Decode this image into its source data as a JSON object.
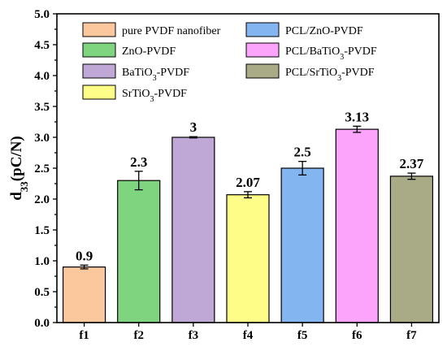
{
  "chart_data": {
    "type": "bar",
    "categories": [
      "f1",
      "f2",
      "f3",
      "f4",
      "f5",
      "f6",
      "f7"
    ],
    "values": [
      0.9,
      2.3,
      3.0,
      2.07,
      2.5,
      3.13,
      2.37
    ],
    "errors": [
      0.03,
      0.15,
      0.01,
      0.05,
      0.11,
      0.05,
      0.05
    ],
    "data_labels": [
      "0.9",
      "2.3",
      "3",
      "2.07",
      "2.5",
      "3.13",
      "2.37"
    ],
    "colors": [
      "#fbc79d",
      "#7fd47f",
      "#bfa8d6",
      "#fdfd88",
      "#83b5f0",
      "#fca4fc",
      "#a9ab86"
    ],
    "legend": [
      {
        "main": "pure PVDF nanofiber",
        "sub": "",
        "tail": "",
        "color": "#fbc79d"
      },
      {
        "main": "PCL/ZnO-PVDF",
        "sub": "",
        "tail": "",
        "color": "#83b5f0"
      },
      {
        "main": "ZnO-PVDF",
        "sub": "",
        "tail": "",
        "color": "#7fd47f"
      },
      {
        "main": "PCL/BaTiO",
        "sub": "3",
        "tail": "-PVDF",
        "color": "#fca4fc"
      },
      {
        "main": "BaTiO",
        "sub": "3",
        "tail": "-PVDF",
        "color": "#bfa8d6"
      },
      {
        "main": "PCL/SrTiO",
        "sub": "3",
        "tail": "-PVDF",
        "color": "#a9ab86"
      },
      {
        "main": "SrTiO",
        "sub": "3",
        "tail": "-PVDF",
        "color": "#fdfd88"
      }
    ],
    "legend_position": "top",
    "ylabel": {
      "main": "d",
      "sub": "33",
      "tail": "(pC/N)"
    },
    "xlabel": "",
    "ylim": [
      0.0,
      5.0
    ],
    "yticks": [
      "0.0",
      "0.5",
      "1.0",
      "1.5",
      "2.0",
      "2.5",
      "3.0",
      "3.5",
      "4.0",
      "4.5",
      "5.0"
    ],
    "grid": false
  }
}
